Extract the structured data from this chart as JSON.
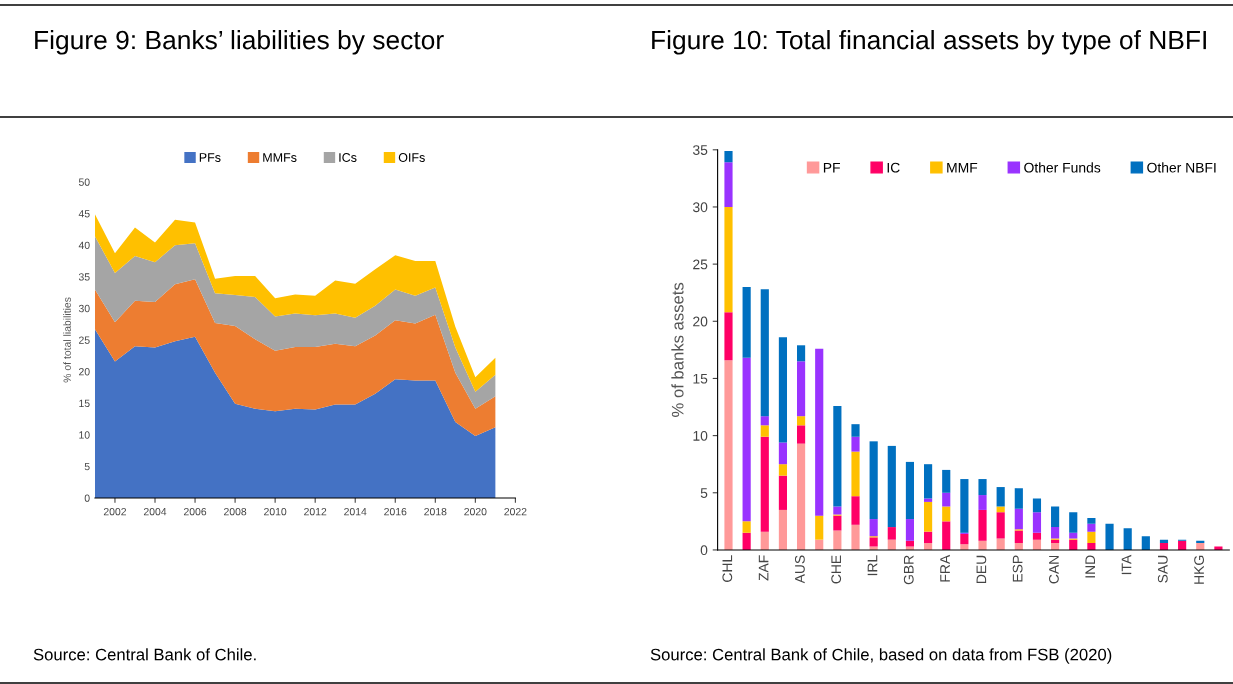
{
  "chart_data": [
    {
      "type": "area",
      "title": "Figure 9: Banks’ liabilities by sector",
      "ylabel": "% of total liabilities",
      "stacked": true,
      "legend": "top",
      "grid": false,
      "x": [
        2001,
        2002,
        2003,
        2004,
        2005,
        2006,
        2007,
        2008,
        2009,
        2010,
        2011,
        2012,
        2013,
        2014,
        2015,
        2016,
        2017,
        2018,
        2019,
        2020,
        2021
      ],
      "xlim": [
        2001,
        2022
      ],
      "xticks": [
        2002,
        2004,
        2006,
        2008,
        2010,
        2012,
        2014,
        2016,
        2018,
        2020,
        2022
      ],
      "ylim": [
        0,
        50
      ],
      "yticks": [
        0,
        5,
        10,
        15,
        20,
        25,
        30,
        35,
        40,
        45,
        50
      ],
      "series": [
        {
          "name": "PFs",
          "color": "#4472c4",
          "values": [
            26.7,
            21.6,
            24.0,
            23.8,
            24.8,
            25.5,
            19.8,
            14.9,
            14.1,
            13.7,
            14.1,
            14.0,
            14.8,
            14.8,
            16.5,
            18.8,
            18.6,
            18.6,
            12.0,
            9.8,
            11.2
          ]
        },
        {
          "name": "MMFs",
          "color": "#ed7d31",
          "values": [
            6.3,
            6.2,
            7.2,
            7.2,
            9.0,
            9.1,
            7.9,
            12.3,
            11.0,
            9.6,
            9.8,
            9.9,
            9.6,
            9.2,
            9.2,
            9.3,
            9.0,
            10.4,
            7.8,
            4.3,
            4.9
          ]
        },
        {
          "name": "ICs",
          "color": "#a5a5a5",
          "values": [
            8.4,
            7.8,
            7.1,
            6.3,
            6.2,
            5.7,
            4.7,
            4.9,
            6.7,
            5.4,
            5.3,
            5.0,
            4.8,
            4.5,
            4.7,
            4.9,
            4.4,
            4.3,
            4.0,
            2.7,
            3.4
          ]
        },
        {
          "name": "OIFs",
          "color": "#ffc000",
          "values": [
            3.5,
            3.1,
            4.5,
            3.1,
            4.0,
            3.3,
            2.3,
            3.0,
            3.3,
            2.9,
            3.0,
            3.1,
            5.2,
            5.4,
            5.8,
            5.4,
            5.5,
            4.2,
            3.3,
            2.3,
            2.7
          ]
        }
      ],
      "annotations": [
        "Source: Central Bank of Chile."
      ]
    },
    {
      "type": "bar",
      "title": "Figure 10: Total financial assets by type of NBFI",
      "ylabel": "% of banks assets",
      "stacked": true,
      "legend": "top right",
      "grid": false,
      "categories": [
        "CHL",
        null,
        "ZAF",
        null,
        "AUS",
        null,
        "CHE",
        null,
        "IRL",
        null,
        "GBR",
        null,
        "FRA",
        null,
        "DEU",
        null,
        "ESP",
        null,
        "CAN",
        null,
        "IND",
        null,
        "ITA",
        null,
        "SAU",
        null,
        "HKG",
        null
      ],
      "ylim": [
        0,
        35
      ],
      "yticks": [
        0,
        5,
        10,
        15,
        20,
        25,
        30,
        35
      ],
      "series": [
        {
          "name": "PF",
          "color": "#ff9999",
          "values": [
            16.6,
            0,
            1.6,
            3.5,
            9.3,
            0.9,
            1.7,
            2.2,
            0.3,
            0.9,
            0.3,
            0.6,
            0,
            0.5,
            0.8,
            1.0,
            0.6,
            0.9,
            0.6,
            0,
            0,
            0,
            0,
            0,
            0,
            0,
            0.6,
            0
          ]
        },
        {
          "name": "IC",
          "color": "#ff0066",
          "values": [
            4.2,
            1.5,
            8.3,
            3.0,
            1.6,
            0,
            1.3,
            2.5,
            0.8,
            1.1,
            0.5,
            1.0,
            2.5,
            0.9,
            2.7,
            2.3,
            1.1,
            0.6,
            0.3,
            0.9,
            0.6,
            0,
            0,
            0,
            0.6,
            0.8,
            0,
            0.3
          ]
        },
        {
          "name": "MMF",
          "color": "#ffc000",
          "values": [
            9.2,
            1.0,
            1.0,
            1.0,
            0.8,
            2.1,
            0.1,
            3.9,
            0.1,
            0,
            0,
            2.6,
            1.3,
            0,
            0,
            0.5,
            0.1,
            0,
            0.1,
            0.1,
            1.0,
            0,
            0,
            0,
            0,
            0,
            0,
            0
          ]
        },
        {
          "name": "Other Funds",
          "color": "#9933ff",
          "values": [
            3.9,
            14.3,
            0.8,
            1.9,
            4.8,
            14.6,
            0.7,
            1.3,
            1.5,
            0,
            1.9,
            0.3,
            1.2,
            0.1,
            1.3,
            0,
            1.8,
            1.8,
            1.0,
            0.5,
            0.7,
            0,
            0,
            0,
            0,
            0,
            0,
            0
          ]
        },
        {
          "name": "Other NBFI",
          "color": "#0070c0",
          "values": [
            1.0,
            6.2,
            11.1,
            9.2,
            1.4,
            0,
            8.8,
            1.1,
            6.8,
            7.1,
            5.0,
            3.0,
            2.0,
            4.7,
            1.4,
            1.7,
            1.8,
            1.2,
            1.8,
            1.8,
            0.5,
            2.3,
            1.9,
            1.2,
            0.3,
            0.1,
            0.2,
            0
          ]
        }
      ],
      "annotations": [
        "Source: Central Bank of Chile, based on data from FSB (2020)"
      ]
    }
  ]
}
